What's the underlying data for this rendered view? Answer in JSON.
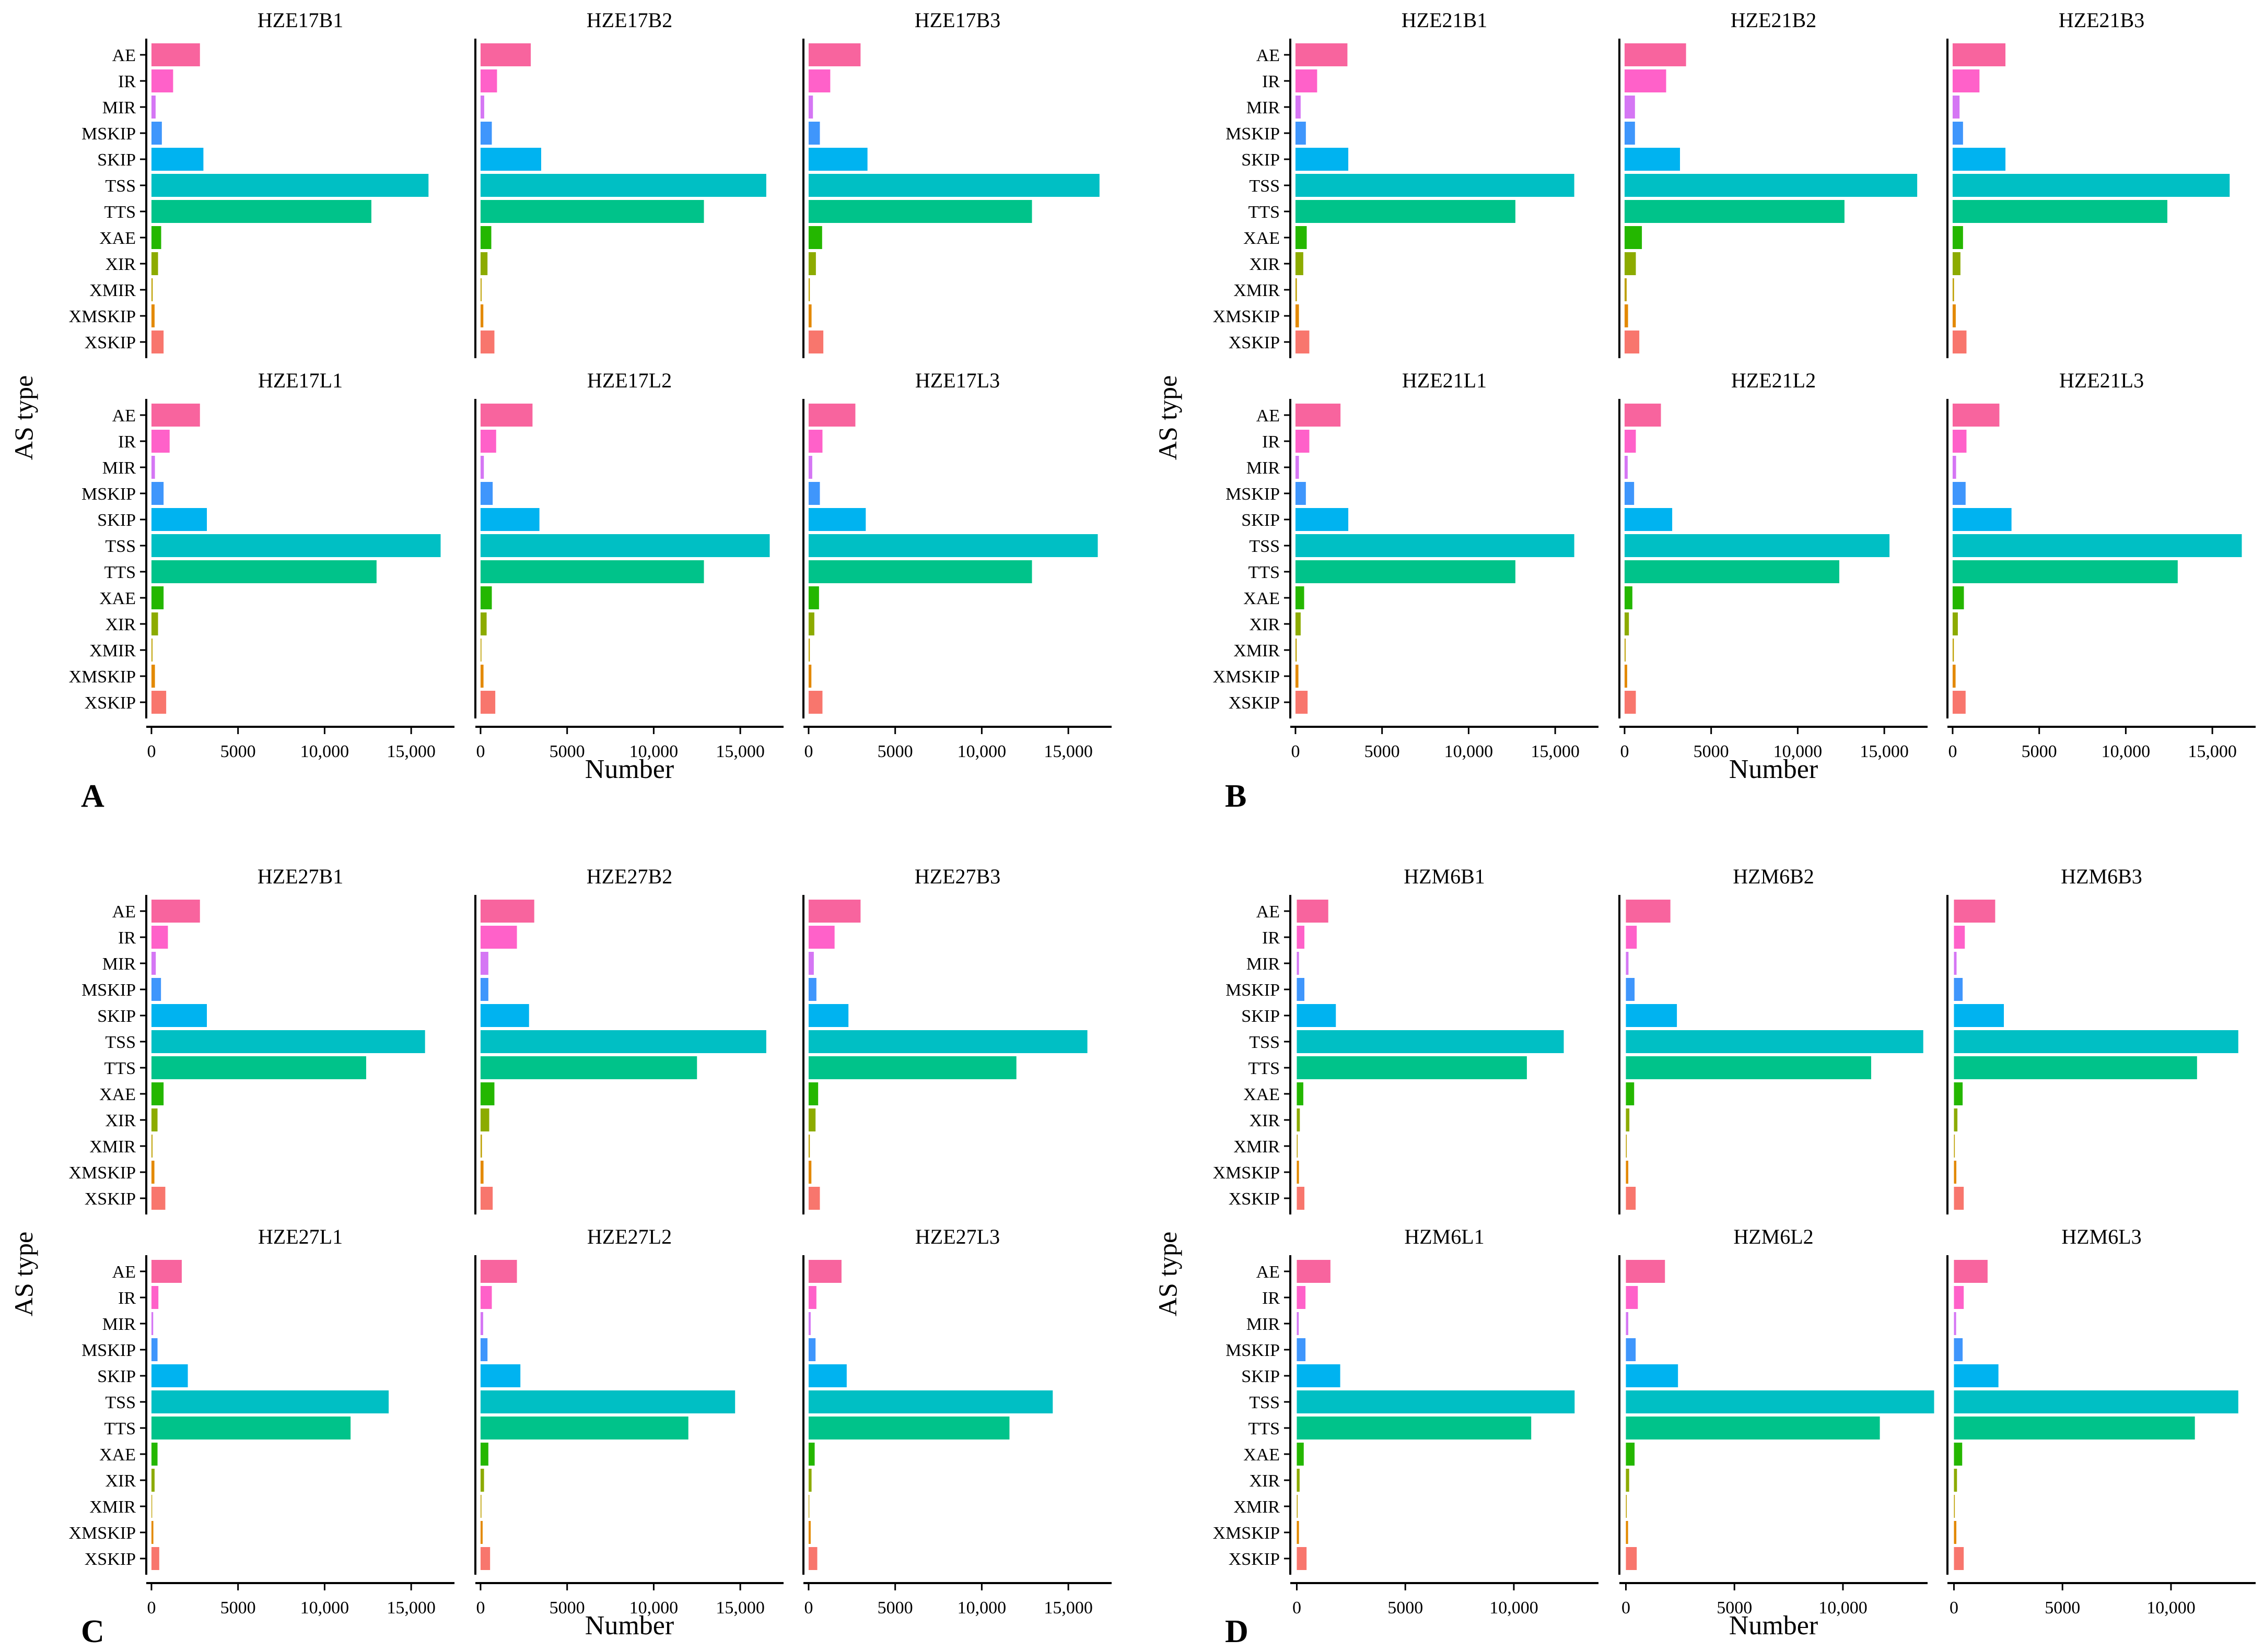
{
  "chart_data": {
    "type": "bar",
    "orientation": "horizontal",
    "categories": [
      "AE",
      "IR",
      "MIR",
      "MSKIP",
      "SKIP",
      "TSS",
      "TTS",
      "XAE",
      "XIR",
      "XMIR",
      "XMSKIP",
      "XSKIP"
    ],
    "colors": [
      "#F8649E",
      "#FF61C9",
      "#D576F4",
      "#3F96FC",
      "#00B3F0",
      "#00BFC4",
      "#00C38A",
      "#24B700",
      "#8CAB00",
      "#BEA000",
      "#E38900",
      "#F8766D"
    ],
    "xlabel": "Number",
    "ylabel": "AS type",
    "panels": [
      {
        "letter": "A",
        "xlim": [
          -300,
          17500
        ],
        "xticks": [
          0,
          5000,
          10000,
          15000
        ],
        "xtick_labels": [
          "0",
          "5000",
          "10,000",
          "15,000"
        ],
        "facets": [
          {
            "name": "HZE17B1",
            "values": [
              2800,
              1250,
              240,
              600,
              3000,
              16000,
              12700,
              560,
              380,
              70,
              180,
              700
            ]
          },
          {
            "name": "HZE17B2",
            "values": [
              2900,
              950,
              210,
              650,
              3500,
              16500,
              12900,
              620,
              400,
              60,
              160,
              800
            ]
          },
          {
            "name": "HZE17B3",
            "values": [
              3000,
              1250,
              250,
              650,
              3400,
              16800,
              12900,
              780,
              420,
              70,
              170,
              850
            ]
          },
          {
            "name": "HZE17L1",
            "values": [
              2800,
              1050,
              200,
              700,
              3200,
              16700,
              13000,
              700,
              380,
              60,
              200,
              850
            ]
          },
          {
            "name": "HZE17L2",
            "values": [
              3000,
              900,
              190,
              700,
              3400,
              16700,
              12900,
              650,
              350,
              50,
              170,
              850
            ]
          },
          {
            "name": "HZE17L3",
            "values": [
              2700,
              800,
              210,
              650,
              3300,
              16700,
              12900,
              600,
              330,
              70,
              160,
              800
            ]
          }
        ]
      },
      {
        "letter": "B",
        "xlim": [
          -300,
          17500
        ],
        "xticks": [
          0,
          5000,
          10000,
          15000
        ],
        "xtick_labels": [
          "0",
          "5000",
          "10,000",
          "15,000"
        ],
        "facets": [
          {
            "name": "HZE21B1",
            "values": [
              3000,
              1250,
              300,
              600,
              3050,
              16100,
              12700,
              650,
              450,
              80,
              200,
              800
            ]
          },
          {
            "name": "HZE21B2",
            "values": [
              3550,
              2400,
              600,
              600,
              3200,
              16900,
              12700,
              1000,
              650,
              120,
              200,
              850
            ]
          },
          {
            "name": "HZE21B3",
            "values": [
              3050,
              1550,
              400,
              600,
              3050,
              16000,
              12400,
              600,
              450,
              80,
              180,
              800
            ]
          },
          {
            "name": "HZE21L1",
            "values": [
              2600,
              800,
              200,
              600,
              3050,
              16100,
              12700,
              500,
              300,
              70,
              170,
              700
            ]
          },
          {
            "name": "HZE21L2",
            "values": [
              2100,
              650,
              180,
              550,
              2750,
              15300,
              12400,
              450,
              250,
              60,
              150,
              650
            ]
          },
          {
            "name": "HZE21L3",
            "values": [
              2700,
              800,
              200,
              750,
              3400,
              16700,
              13000,
              650,
              300,
              70,
              170,
              750
            ]
          }
        ]
      },
      {
        "letter": "C",
        "xlim": [
          -300,
          17500
        ],
        "xticks": [
          0,
          5000,
          10000,
          15000
        ],
        "xtick_labels": [
          "0",
          "5000",
          "10,000",
          "15,000"
        ],
        "facets": [
          {
            "name": "HZE27B1",
            "values": [
              2800,
              950,
              250,
              550,
              3200,
              15800,
              12400,
              700,
              350,
              60,
              170,
              800
            ]
          },
          {
            "name": "HZE27B2",
            "values": [
              3100,
              2100,
              450,
              450,
              2800,
              16500,
              12500,
              800,
              500,
              80,
              170,
              700
            ]
          },
          {
            "name": "HZE27B3",
            "values": [
              3000,
              1500,
              300,
              450,
              2300,
              16100,
              12000,
              550,
              400,
              70,
              160,
              650
            ]
          },
          {
            "name": "HZE27L1",
            "values": [
              1750,
              400,
              100,
              350,
              2100,
              13700,
              11500,
              350,
              180,
              40,
              110,
              450
            ]
          },
          {
            "name": "HZE27L2",
            "values": [
              2100,
              650,
              150,
              400,
              2300,
              14700,
              12000,
              450,
              200,
              50,
              120,
              550
            ]
          },
          {
            "name": "HZE27L3",
            "values": [
              1900,
              450,
              120,
              400,
              2200,
              14100,
              11600,
              350,
              170,
              40,
              120,
              500
            ]
          }
        ]
      },
      {
        "letter": "D",
        "xlim": [
          -300,
          13900
        ],
        "xticks": [
          0,
          5000,
          10000
        ],
        "xtick_labels": [
          "0",
          "5000",
          "10,000"
        ],
        "facets": [
          {
            "name": "HZM6B1",
            "values": [
              1450,
              350,
              100,
              350,
              1800,
              12300,
              10600,
              300,
              140,
              40,
              100,
              350
            ]
          },
          {
            "name": "HZM6B2",
            "values": [
              2050,
              500,
              120,
              400,
              2350,
              13700,
              11300,
              380,
              160,
              40,
              110,
              450
            ]
          },
          {
            "name": "HZM6B3",
            "values": [
              1900,
              500,
              120,
              400,
              2300,
              13100,
              11200,
              400,
              160,
              40,
              110,
              450
            ]
          },
          {
            "name": "HZM6L1",
            "values": [
              1550,
              400,
              90,
              400,
              2000,
              12800,
              10800,
              320,
              130,
              40,
              100,
              450
            ]
          },
          {
            "name": "HZM6L2",
            "values": [
              1800,
              550,
              110,
              450,
              2400,
              14200,
              11700,
              400,
              150,
              40,
              100,
              500
            ]
          },
          {
            "name": "HZM6L3",
            "values": [
              1550,
              450,
              100,
              400,
              2050,
              13100,
              11100,
              380,
              140,
              40,
              110,
              450
            ]
          }
        ]
      }
    ]
  }
}
